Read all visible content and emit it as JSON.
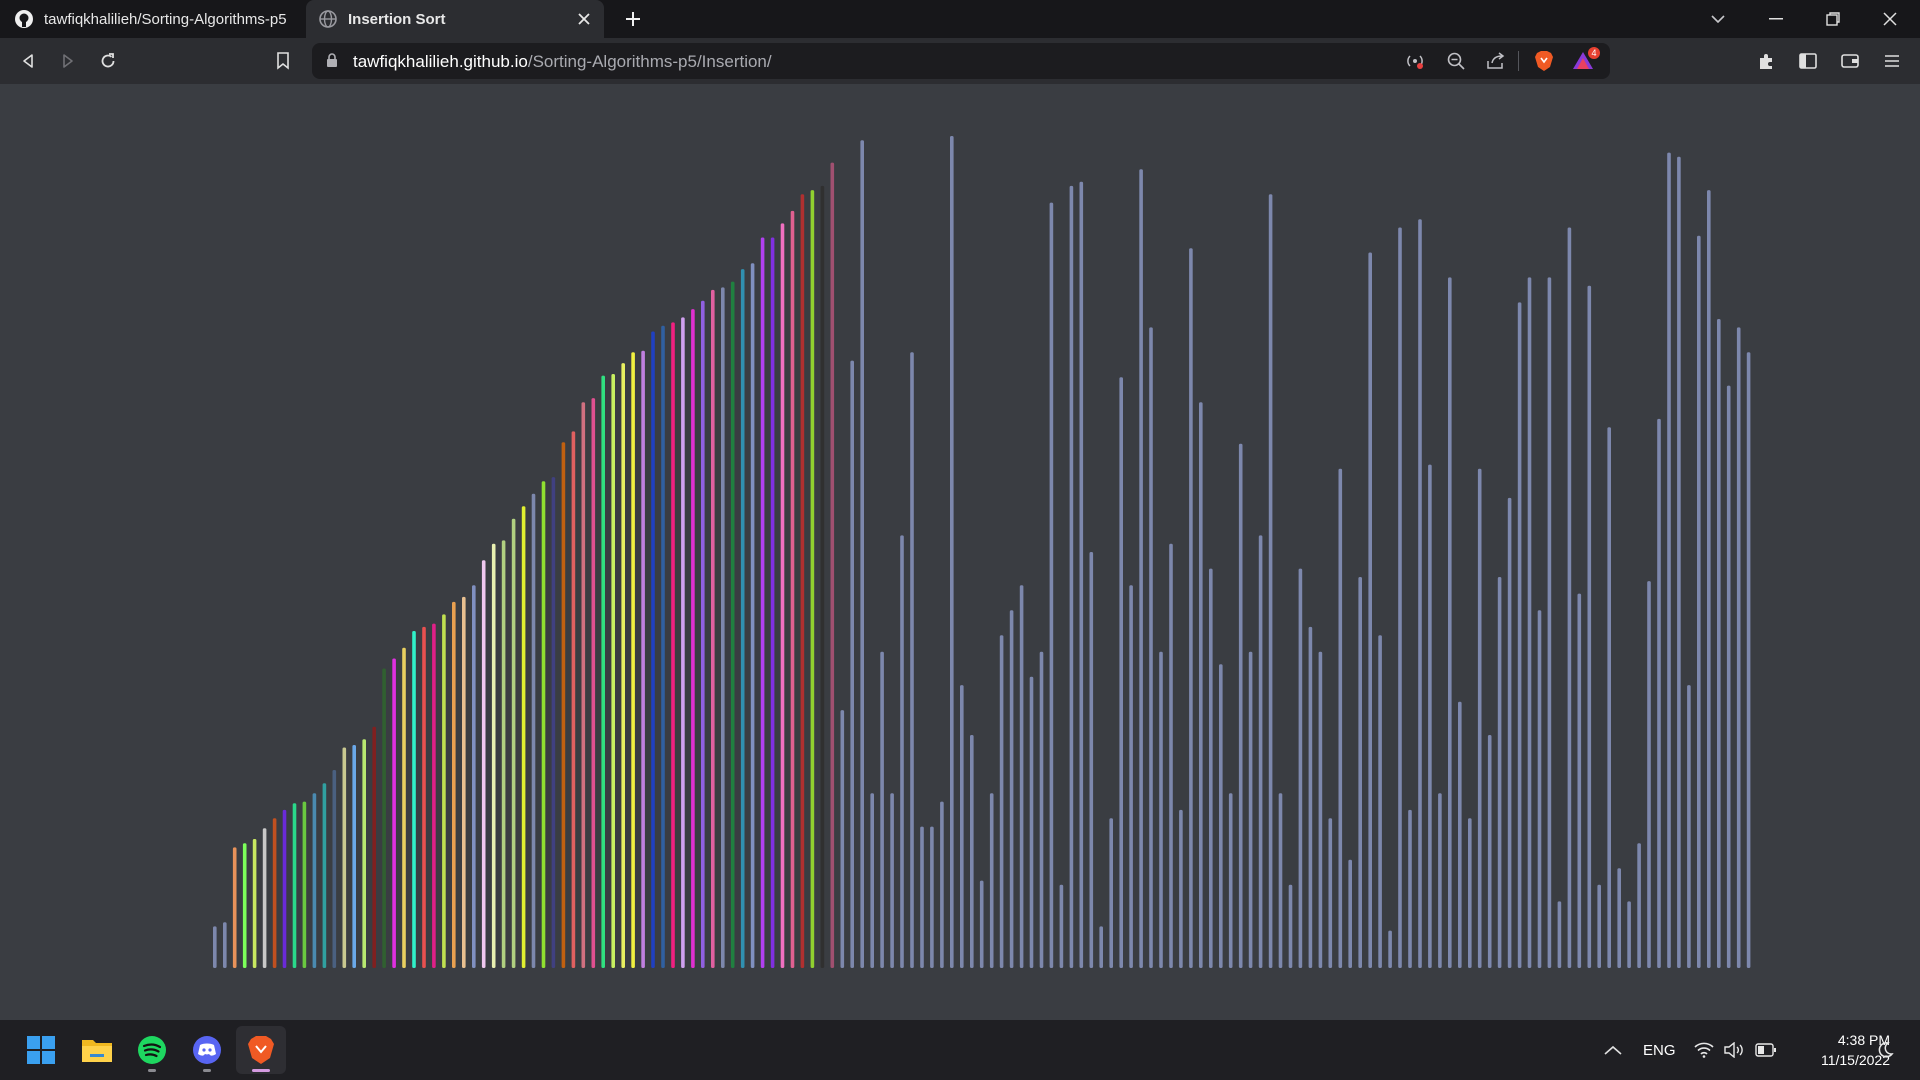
{
  "browser": {
    "tabs": [
      {
        "title": "tawfiqkhalilieh/Sorting-Algorithms-p5",
        "icon": "github-icon"
      },
      {
        "title": "Insertion Sort",
        "icon": "globe-icon",
        "active": true
      }
    ],
    "url_host": "tawfiqkhalilieh.github.io",
    "url_path": "/Sorting-Algorithms-p5/Insertion/",
    "shields_badge": "4"
  },
  "visualization": {
    "algorithm": "Insertion Sort",
    "default_bar_color": "#7d88ad",
    "background": "#3a3d42",
    "sorted_bars": [
      {
        "h": 0.05,
        "c": "#7d88ad"
      },
      {
        "h": 0.055,
        "c": "#7d88ad"
      },
      {
        "h": 0.145,
        "c": "#e8925a"
      },
      {
        "h": 0.15,
        "c": "#7cff5a"
      },
      {
        "h": 0.155,
        "c": "#c8e860"
      },
      {
        "h": 0.168,
        "c": "#c8c8c8"
      },
      {
        "h": 0.18,
        "c": "#c05020"
      },
      {
        "h": 0.19,
        "c": "#6a2ad8"
      },
      {
        "h": 0.198,
        "c": "#2ad88a"
      },
      {
        "h": 0.2,
        "c": "#6ac840"
      },
      {
        "h": 0.21,
        "c": "#4a8ab0"
      },
      {
        "h": 0.222,
        "c": "#30a0a0"
      },
      {
        "h": 0.238,
        "c": "#4a6080"
      },
      {
        "h": 0.265,
        "c": "#c8c890"
      },
      {
        "h": 0.268,
        "c": "#6aa8e8"
      },
      {
        "h": 0.275,
        "c": "#b8e870"
      },
      {
        "h": 0.29,
        "c": "#802020"
      },
      {
        "h": 0.36,
        "c": "#306030"
      },
      {
        "h": 0.372,
        "c": "#e030e0"
      },
      {
        "h": 0.385,
        "c": "#e8d060"
      },
      {
        "h": 0.405,
        "c": "#30f0c8"
      },
      {
        "h": 0.41,
        "c": "#e85050"
      },
      {
        "h": 0.414,
        "c": "#e02088"
      },
      {
        "h": 0.425,
        "c": "#c0e050"
      },
      {
        "h": 0.44,
        "c": "#e8a050"
      },
      {
        "h": 0.446,
        "c": "#e8c090"
      },
      {
        "h": 0.46,
        "c": "#8090c0"
      },
      {
        "h": 0.49,
        "c": "#f0c8f0"
      },
      {
        "h": 0.51,
        "c": "#e8f0b0"
      },
      {
        "h": 0.514,
        "c": "#b0d080"
      },
      {
        "h": 0.54,
        "c": "#b0d080"
      },
      {
        "h": 0.555,
        "c": "#e0f030"
      },
      {
        "h": 0.57,
        "c": "#7d88ad"
      },
      {
        "h": 0.585,
        "c": "#90e030"
      },
      {
        "h": 0.59,
        "c": "#404080"
      },
      {
        "h": 0.632,
        "c": "#c06010"
      },
      {
        "h": 0.645,
        "c": "#e06060"
      },
      {
        "h": 0.68,
        "c": "#d07080"
      },
      {
        "h": 0.685,
        "c": "#e05090"
      },
      {
        "h": 0.712,
        "c": "#30e080"
      },
      {
        "h": 0.714,
        "c": "#c8f060"
      },
      {
        "h": 0.727,
        "c": "#e8f060"
      },
      {
        "h": 0.74,
        "c": "#f0f040"
      },
      {
        "h": 0.742,
        "c": "#c080e0"
      },
      {
        "h": 0.765,
        "c": "#2040c0"
      },
      {
        "h": 0.772,
        "c": "#3060a0"
      },
      {
        "h": 0.776,
        "c": "#f02080"
      },
      {
        "h": 0.782,
        "c": "#d0a0f0"
      },
      {
        "h": 0.792,
        "c": "#e030d0"
      },
      {
        "h": 0.802,
        "c": "#9060e0"
      },
      {
        "h": 0.815,
        "c": "#e060a0"
      },
      {
        "h": 0.818,
        "c": "#7d88ad"
      },
      {
        "h": 0.825,
        "c": "#208040"
      },
      {
        "h": 0.84,
        "c": "#3090b0"
      },
      {
        "h": 0.847,
        "c": "#8090c0"
      },
      {
        "h": 0.878,
        "c": "#b040f0"
      },
      {
        "h": 0.878,
        "c": "#8030e0"
      },
      {
        "h": 0.895,
        "c": "#f070c0"
      },
      {
        "h": 0.91,
        "c": "#e06090"
      },
      {
        "h": 0.93,
        "c": "#b03030"
      },
      {
        "h": 0.935,
        "c": "#90d030"
      },
      {
        "h": 0.94,
        "c": "#303030"
      },
      {
        "h": 0.968,
        "c": "#a05070"
      }
    ],
    "unsorted_bars": [
      0.31,
      0.73,
      0.995,
      0.21,
      0.38,
      0.21,
      0.52,
      0.74,
      0.17,
      0.17,
      0.2,
      1.0,
      0.34,
      0.28,
      0.105,
      0.21,
      0.4,
      0.43,
      0.46,
      0.35,
      0.38,
      0.92,
      0.1,
      0.94,
      0.945,
      0.5,
      0.05,
      0.18,
      0.71,
      0.46,
      0.96,
      0.77,
      0.38,
      0.51,
      0.19,
      0.865,
      0.68,
      0.48,
      0.365,
      0.21,
      0.63,
      0.38,
      0.52,
      0.93,
      0.21,
      0.1,
      0.48,
      0.41,
      0.38,
      0.18,
      0.6,
      0.13,
      0.47,
      0.86,
      0.4,
      0.045,
      0.89,
      0.19,
      0.9,
      0.605,
      0.21,
      0.83,
      0.32,
      0.18,
      0.6,
      0.28,
      0.47,
      0.565,
      0.8,
      0.83,
      0.43,
      0.83,
      0.08,
      0.89,
      0.45,
      0.82,
      0.1,
      0.65,
      0.12,
      0.08,
      0.15,
      0.465,
      0.66,
      0.98,
      0.975,
      0.34,
      0.88,
      0.935,
      0.78,
      0.7,
      0.77,
      0.74
    ]
  },
  "taskbar": {
    "apps": [
      "windows-start-icon",
      "file-explorer-icon",
      "spotify-icon",
      "discord-icon",
      "brave-icon"
    ],
    "language": "ENG",
    "time": "4:38 PM",
    "date": "11/15/2022"
  }
}
